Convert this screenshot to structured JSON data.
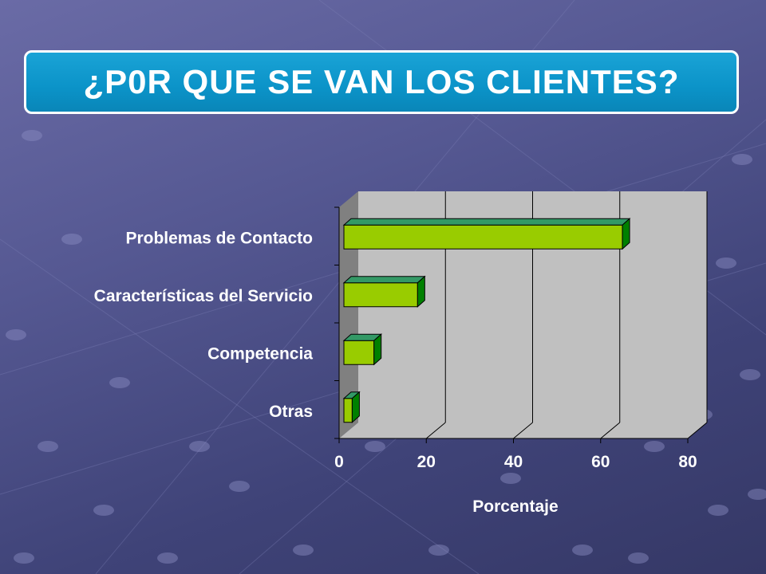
{
  "slide": {
    "title": "¿P0R QUE SE VAN LOS CLIENTES?"
  },
  "colors": {
    "title_box": "#0b93c8",
    "bar_front": "#99cc00",
    "bar_top": "#339966",
    "bar_side": "#008000",
    "plot_wall": "#c0c0c0",
    "plot_side_wall": "#808080",
    "text": "#ffffff"
  },
  "chart_data": {
    "type": "bar",
    "orientation": "horizontal",
    "three_d": true,
    "categories": [
      "Problemas de Contacto",
      "Características del Servicio",
      "Competencia",
      "Otras"
    ],
    "values": [
      65,
      18,
      8,
      3
    ],
    "xlabel": "Porcentaje",
    "ylabel": "",
    "xlim": [
      0,
      80
    ],
    "xticks": [
      "0",
      "20",
      "40",
      "60",
      "80"
    ],
    "grid": true,
    "legend": "none"
  }
}
